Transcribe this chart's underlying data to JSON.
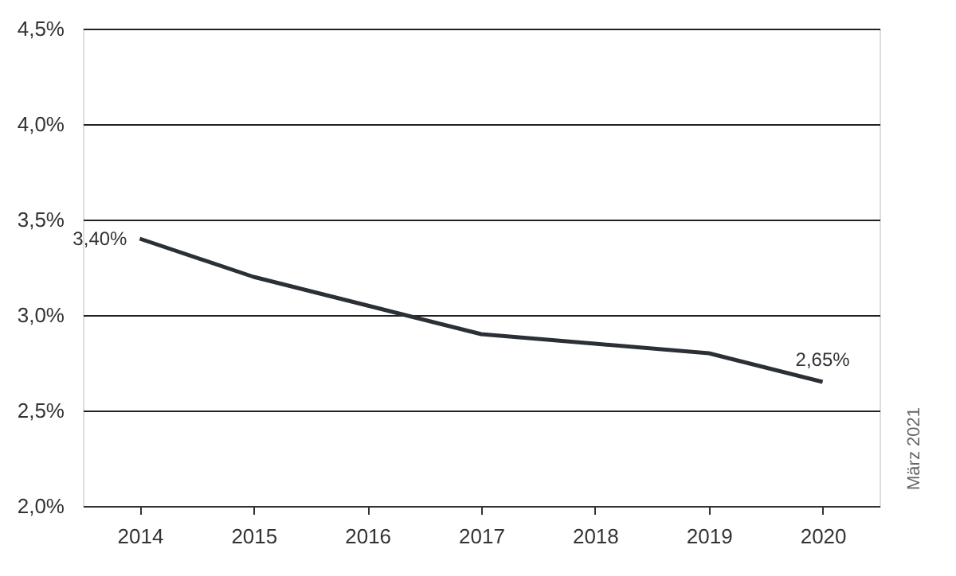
{
  "chart_data": {
    "type": "line",
    "categories": [
      "2014",
      "2015",
      "2016",
      "2017",
      "2018",
      "2019",
      "2020"
    ],
    "series": [
      {
        "color": "#2b3036",
        "values": [
          3.4,
          3.2,
          3.05,
          2.9,
          2.85,
          2.8,
          2.65
        ],
        "value_labels": [
          "3,40%",
          null,
          null,
          null,
          null,
          null,
          "2,65%"
        ]
      }
    ],
    "ylim": [
      2.0,
      4.5
    ],
    "yticks": [
      {
        "value": 2.0,
        "label": "2,0%"
      },
      {
        "value": 2.5,
        "label": "2,5%"
      },
      {
        "value": 3.0,
        "label": "3,0%"
      },
      {
        "value": 3.5,
        "label": "3,5%"
      },
      {
        "value": 4.0,
        "label": "4,0%"
      },
      {
        "value": 4.5,
        "label": "4,5%"
      }
    ],
    "grid": "y",
    "marker": "none",
    "line_style": "solid",
    "annotations": [
      "März 2021"
    ]
  }
}
